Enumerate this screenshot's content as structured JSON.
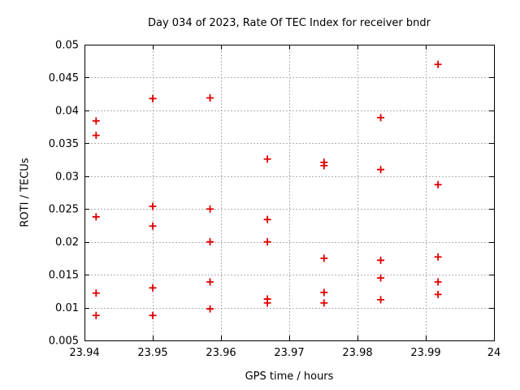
{
  "chart_data": {
    "type": "scatter",
    "title": "Day 034 of 2023, Rate Of TEC Index for receiver bndr",
    "xlabel": "GPS time / hours",
    "ylabel": "ROTI / TECUs",
    "xlim": [
      23.94,
      24
    ],
    "ylim": [
      0.005,
      0.05
    ],
    "x_ticks": [
      23.94,
      23.95,
      23.96,
      23.97,
      23.98,
      23.99,
      24
    ],
    "x_tick_labels": [
      "23.94",
      "23.95",
      "23.96",
      "23.97",
      "23.98",
      "23.99",
      "24"
    ],
    "y_ticks": [
      0.005,
      0.01,
      0.015,
      0.02,
      0.025,
      0.03,
      0.035,
      0.04,
      0.045,
      0.05
    ],
    "y_tick_labels": [
      "0.005",
      "0.01",
      "0.015",
      "0.02",
      "0.025",
      "0.03",
      "0.035",
      "0.04",
      "0.045",
      "0.05"
    ],
    "grid": true,
    "legend_position": "none",
    "marker": {
      "shape": "plus",
      "color": "#e10000",
      "size": 9
    },
    "axis_color": "#000000",
    "grid_color": "#b0b0b0",
    "series": [
      {
        "name": "roti",
        "points": [
          [
            23.9417,
            0.0384
          ],
          [
            23.9417,
            0.0362
          ],
          [
            23.9417,
            0.0238
          ],
          [
            23.9417,
            0.0122
          ],
          [
            23.9417,
            0.0088
          ],
          [
            23.95,
            0.0418
          ],
          [
            23.95,
            0.0254
          ],
          [
            23.95,
            0.0224
          ],
          [
            23.95,
            0.013
          ],
          [
            23.95,
            0.0088
          ],
          [
            23.9584,
            0.0419
          ],
          [
            23.9584,
            0.025
          ],
          [
            23.9584,
            0.02
          ],
          [
            23.9584,
            0.0139
          ],
          [
            23.9584,
            0.0098
          ],
          [
            23.9668,
            0.0326
          ],
          [
            23.9668,
            0.0234
          ],
          [
            23.9668,
            0.02
          ],
          [
            23.9668,
            0.0113
          ],
          [
            23.9668,
            0.0107
          ],
          [
            23.9751,
            0.0321
          ],
          [
            23.9751,
            0.0316
          ],
          [
            23.9751,
            0.0175
          ],
          [
            23.9751,
            0.0123
          ],
          [
            23.9751,
            0.0107
          ],
          [
            23.9834,
            0.0389
          ],
          [
            23.9834,
            0.031
          ],
          [
            23.9834,
            0.0172
          ],
          [
            23.9834,
            0.0145
          ],
          [
            23.9834,
            0.0112
          ],
          [
            23.9918,
            0.047
          ],
          [
            23.9918,
            0.0287
          ],
          [
            23.9918,
            0.0177
          ],
          [
            23.9918,
            0.0139
          ],
          [
            23.9918,
            0.012
          ]
        ]
      }
    ]
  }
}
